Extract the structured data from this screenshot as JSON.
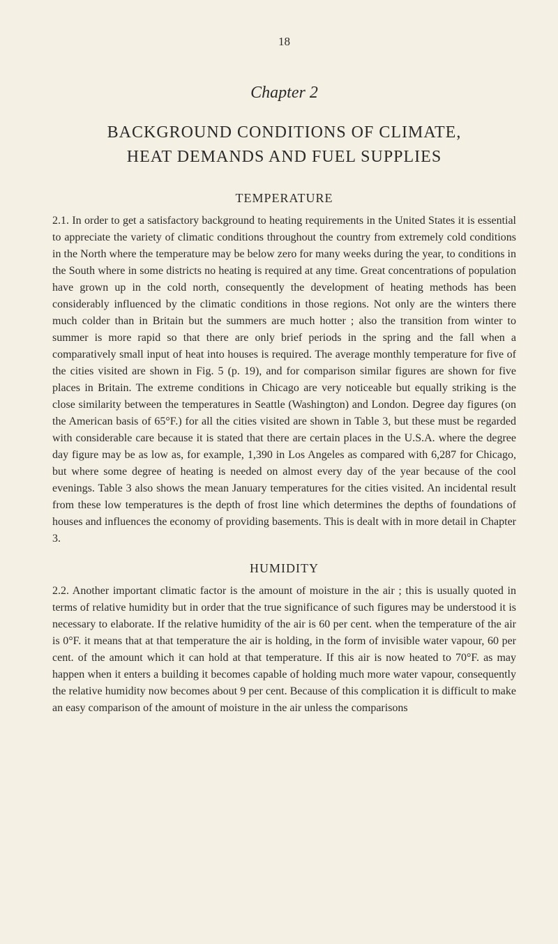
{
  "page_number": "18",
  "chapter_title": "Chapter 2",
  "main_title": "BACKGROUND CONDITIONS OF CLIMATE,",
  "sub_title": "HEAT DEMANDS AND FUEL SUPPLIES",
  "section_1_heading": "TEMPERATURE",
  "paragraph_1": "2.1. In order to get a satisfactory background to heating requirements in the United States it is essential to appreciate the variety of climatic conditions throughout the country from extremely cold conditions in the North where the temperature may be below zero for many weeks during the year, to conditions in the South where in some districts no heating is required at any time. Great concentrations of population have grown up in the cold north, consequently the development of heating methods has been considerably influenced by the climatic conditions in those regions. Not only are the winters there much colder than in Britain but the summers are much hotter ; also the transition from winter to summer is more rapid so that there are only brief periods in the spring and the fall when a comparatively small input of heat into houses is required. The average monthly temperature for five of the cities visited are shown in Fig. 5 (p. 19), and for comparison similar figures are shown for five places in Britain. The extreme conditions in Chicago are very noticeable but equally striking is the close similarity between the temperatures in Seattle (Washington) and London. Degree day figures (on the American basis of 65°F.) for all the cities visited are shown in Table 3, but these must be regarded with considerable care because it is stated that there are certain places in the U.S.A. where the degree day figure may be as low as, for example, 1,390 in Los Angeles as compared with 6,287 for Chicago, but where some degree of heating is needed on almost every day of the year because of the cool evenings. Table 3 also shows the mean January temperatures for the cities visited. An incidental result from these low temperatures is the depth of frost line which determines the depths of foundations of houses and influences the economy of providing basements. This is dealt with in more detail in Chapter 3.",
  "section_2_heading": "HUMIDITY",
  "paragraph_2": "2.2. Another important climatic factor is the amount of moisture in the air ; this is usually quoted in terms of relative humidity but in order that the true significance of such figures may be understood it is necessary to elaborate. If the relative humidity of the air is 60 per cent. when the temperature of the air is 0°F. it means that at that temperature the air is holding, in the form of invisible water vapour, 60 per cent. of the amount which it can hold at that temperature. If this air is now heated to 70°F. as may happen when it enters a building it becomes capable of holding much more water vapour, consequently the relative humidity now becomes about 9 per cent. Because of this complication it is difficult to make an easy comparison of the amount of moisture in the air unless the comparisons"
}
